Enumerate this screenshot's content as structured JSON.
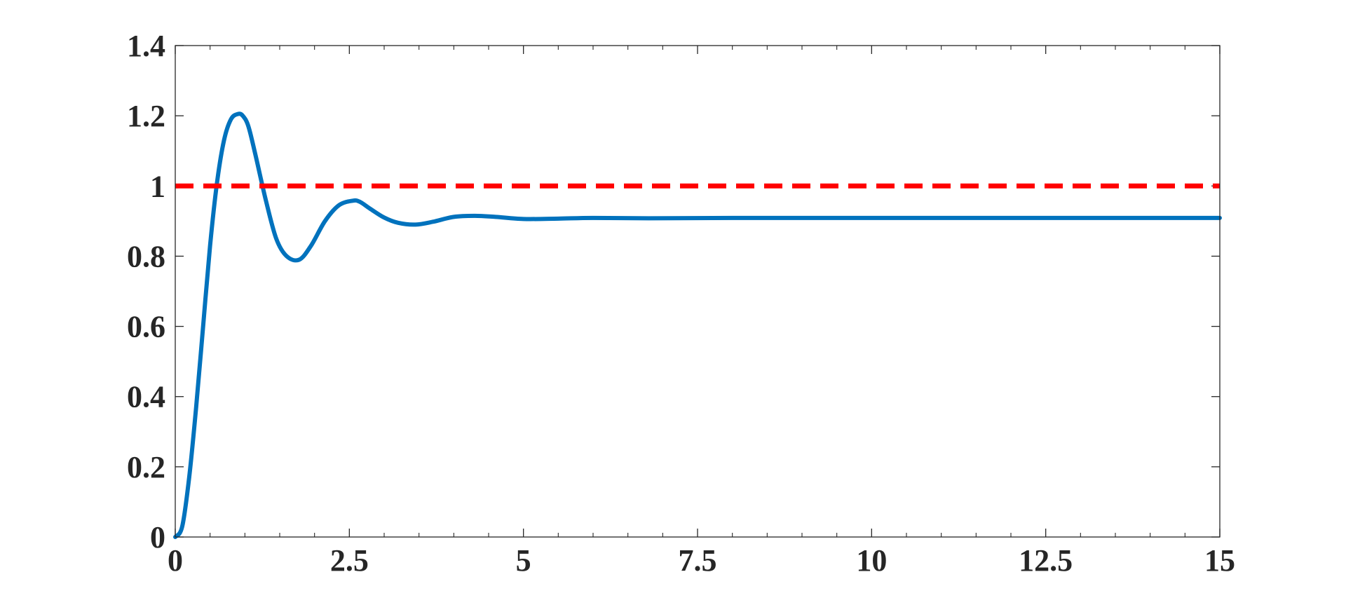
{
  "chart_data": {
    "type": "line",
    "title": "",
    "xlabel": "",
    "ylabel": "",
    "xlim": [
      0,
      15
    ],
    "ylim": [
      0,
      1.4
    ],
    "grid": false,
    "x_ticks": [
      0,
      2.5,
      5,
      7.5,
      10,
      12.5,
      15
    ],
    "x_tick_labels": [
      "0",
      "2.5",
      "5",
      "7.5",
      "10",
      "12.5",
      "15"
    ],
    "y_ticks": [
      0,
      0.2,
      0.4,
      0.6,
      0.8,
      1,
      1.2,
      1.4
    ],
    "y_tick_labels": [
      "0",
      "0.2",
      "0.4",
      "0.6",
      "0.8",
      "1",
      "1.2",
      "1.4"
    ],
    "series": [
      {
        "color": "#0072BD",
        "style": "solid",
        "x": [
          0,
          0.1,
          0.2,
          0.3,
          0.4,
          0.5,
          0.6,
          0.7,
          0.8,
          0.9,
          0.97,
          1.05,
          1.15,
          1.3,
          1.45,
          1.6,
          1.78,
          1.95,
          2.15,
          2.35,
          2.55,
          2.65,
          2.8,
          3.0,
          3.2,
          3.45,
          3.7,
          4.0,
          4.3,
          4.6,
          5.0,
          5.5,
          6.0,
          6.8,
          8.0,
          10.0,
          12.5,
          15.0
        ],
        "y": [
          0,
          0.03,
          0.17,
          0.37,
          0.6,
          0.83,
          1.01,
          1.13,
          1.19,
          1.205,
          1.2,
          1.17,
          1.09,
          0.96,
          0.85,
          0.8,
          0.79,
          0.83,
          0.9,
          0.945,
          0.958,
          0.955,
          0.935,
          0.91,
          0.895,
          0.89,
          0.898,
          0.912,
          0.915,
          0.912,
          0.906,
          0.907,
          0.909,
          0.908,
          0.909,
          0.909,
          0.909,
          0.909
        ]
      },
      {
        "color": "#FF0000",
        "style": "dashed",
        "x": [
          0,
          15
        ],
        "y": [
          1,
          1
        ]
      }
    ]
  }
}
